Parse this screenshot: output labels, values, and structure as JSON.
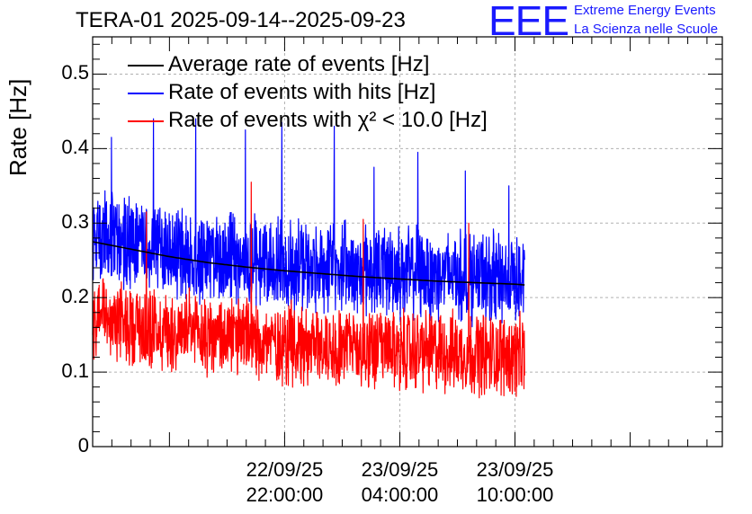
{
  "chart_data": {
    "type": "line",
    "title": "TERA-01 2025-09-14--2025-09-23",
    "xlabel": "",
    "ylabel": "Rate [Hz]",
    "ylim": [
      0,
      0.55
    ],
    "y_ticks": [
      "0",
      "0.1",
      "0.2",
      "0.3",
      "0.4",
      "0.5"
    ],
    "x_range_hours": [
      -10,
      22.8
    ],
    "x_ticks": [
      {
        "hour": 0,
        "date": "22/09/25",
        "time": "22:00:00"
      },
      {
        "hour": 6,
        "date": "23/09/25",
        "time": "04:00:00"
      },
      {
        "hour": 12,
        "date": "23/09/25",
        "time": "10:00:00"
      }
    ],
    "series": [
      {
        "name": "Average rate of events [Hz]",
        "color": "#000000",
        "kind": "smooth",
        "x": [
          -10,
          -8,
          -6,
          -4,
          -2,
          0,
          2,
          4,
          6,
          8,
          10,
          12,
          12.5
        ],
        "values": [
          0.275,
          0.265,
          0.255,
          0.247,
          0.241,
          0.236,
          0.232,
          0.228,
          0.225,
          0.222,
          0.22,
          0.218,
          0.217
        ]
      },
      {
        "name": "Rate of events with hits [Hz]",
        "color": "#0000ff",
        "kind": "noisy",
        "x": [
          -10,
          -8,
          -6,
          -4,
          -2,
          0,
          2,
          4,
          6,
          8,
          10,
          12,
          12.5
        ],
        "values": [
          0.285,
          0.27,
          0.262,
          0.255,
          0.25,
          0.245,
          0.242,
          0.238,
          0.235,
          0.232,
          0.228,
          0.225,
          0.22
        ],
        "peaks": [
          0.415,
          0.44,
          0.44,
          0.425,
          0.435,
          0.43,
          0.375,
          0.395,
          0.37,
          0.35
        ]
      },
      {
        "name": "Rate of events with χ² < 10.0 [Hz]",
        "color": "#ff0000",
        "kind": "noisy",
        "x": [
          -10,
          -8,
          -6,
          -4,
          -2,
          0,
          2,
          4,
          6,
          8,
          10,
          12,
          12.5
        ],
        "values": [
          0.175,
          0.165,
          0.155,
          0.148,
          0.145,
          0.14,
          0.136,
          0.132,
          0.13,
          0.127,
          0.125,
          0.122,
          0.12
        ],
        "peaks": [
          0.315,
          0.355,
          0.305,
          0.3
        ]
      }
    ],
    "legend": [
      "Average rate of events [Hz]",
      "Rate of events with hits [Hz]",
      "Rate of events with χ² < 10.0 [Hz]"
    ],
    "legend_position": "top-left",
    "grid": true
  },
  "logo": {
    "mark": "EEE",
    "line1": "Extreme Energy Events",
    "line2": "La Scienza nelle Scuole"
  },
  "legend_labels": {
    "avg": "Average rate of events [Hz]",
    "hits": "Rate of events with hits [Hz]",
    "chi": "Rate of events with χ² < 10.0 [Hz]"
  }
}
